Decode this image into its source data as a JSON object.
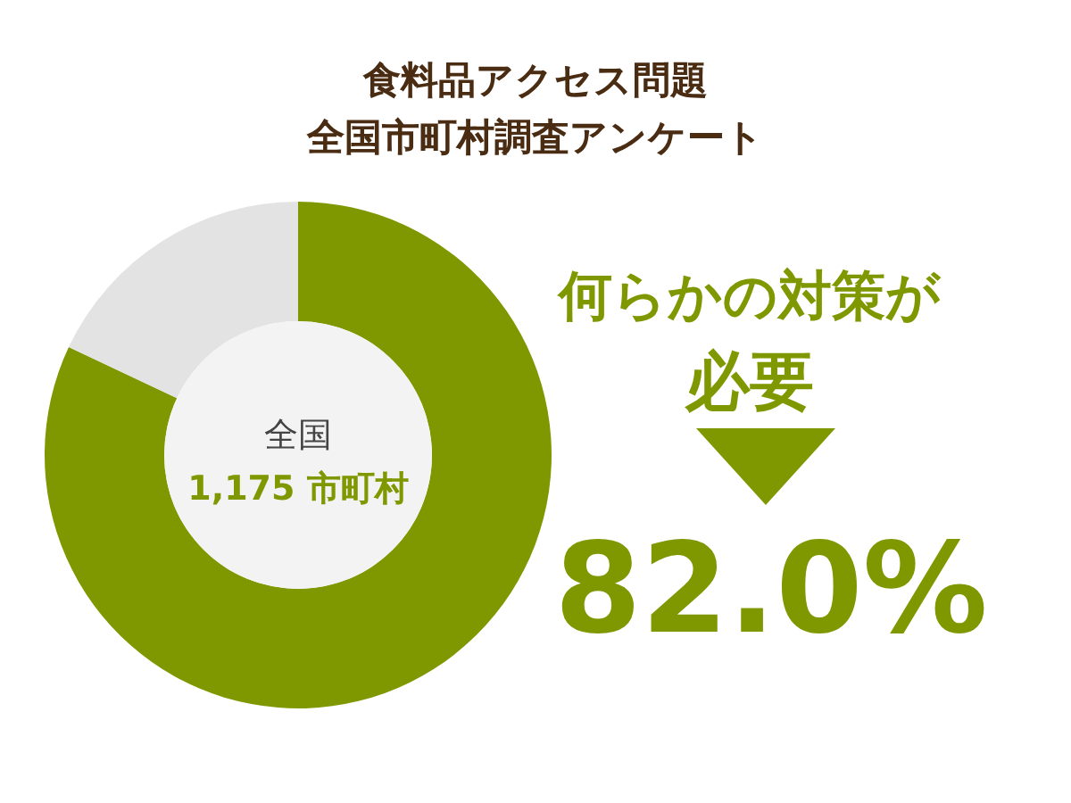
{
  "chart_data": {
    "type": "donut",
    "title": "食料品アクセス問題",
    "subtitle": "全国市町村調査アンケート",
    "categories": [
      null,
      null
    ],
    "values": [
      82.0,
      18.0
    ],
    "colors": [
      "#7f9800",
      "#e3e3e3"
    ],
    "value_labels": [
      "82.0%",
      null
    ],
    "annotations": [
      "全国",
      "1,175 市町村",
      "何らかの対策が",
      "必要"
    ]
  }
}
